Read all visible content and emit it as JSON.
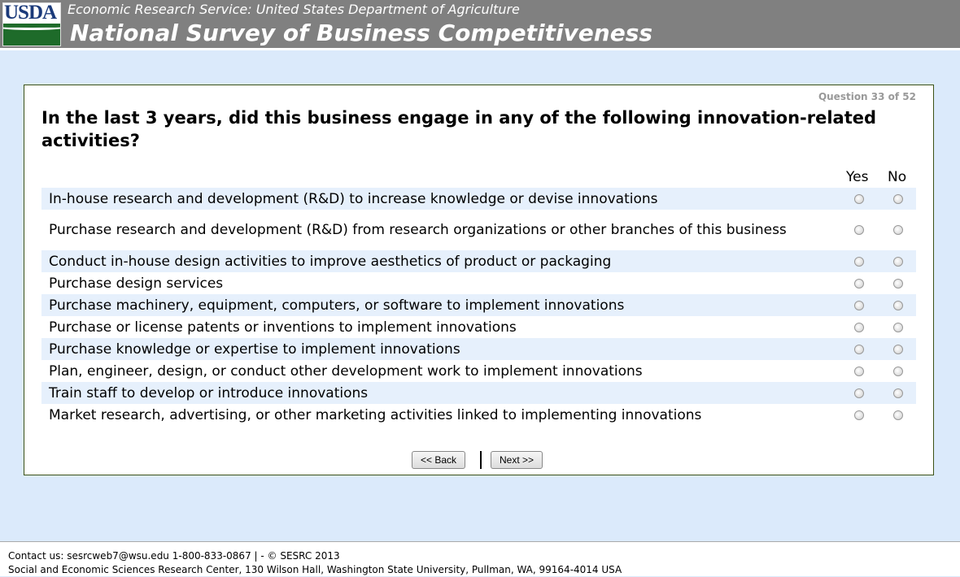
{
  "header": {
    "logo_text": "USDA",
    "subtitle": "Economic Research Service: United States Department of Agriculture",
    "title": "National Survey of Business Competitiveness"
  },
  "question": {
    "counter": "Question 33 of 52",
    "text": "In the last 3 years, did this business engage in any of the following innovation-related activities?",
    "col_yes": "Yes",
    "col_no": "No",
    "items": [
      "In-house research and development (R&D) to increase knowledge or devise innovations",
      "Purchase research and development (R&D) from research organizations or other branches of this business",
      "Conduct in-house design activities to improve aesthetics of product or packaging",
      "Purchase design services",
      "Purchase machinery, equipment, computers, or software to implement innovations",
      "Purchase or license patents or inventions to implement innovations",
      "Purchase knowledge or expertise to implement innovations",
      "Plan, engineer, design, or conduct other development work to implement innovations",
      "Train staff to develop or introduce innovations",
      "Market research, advertising, or other marketing activities linked to implementing innovations"
    ]
  },
  "nav": {
    "back": "<< Back",
    "next": "Next >>"
  },
  "footer": {
    "line1": "Contact us: sesrcweb7@wsu.edu 1-800-833-0867 | - © SESRC 2013",
    "line2": "Social and Economic Sciences Research Center, 130 Wilson Hall, Washington State University, Pullman, WA, 99164-4014 USA"
  }
}
